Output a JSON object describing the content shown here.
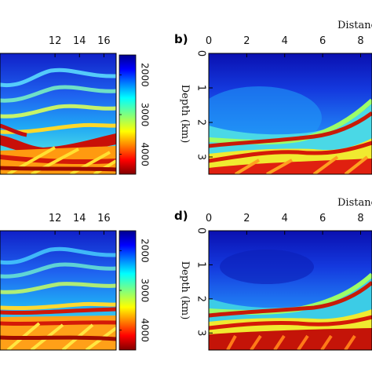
{
  "chart_data": [
    {
      "type": "heatmap",
      "panel": "a",
      "visible_label": "",
      "xticks": [
        12,
        14,
        16
      ],
      "xlim": [
        7.5,
        17
      ],
      "colorbar": {
        "ticks": [
          2000,
          3000,
          4000
        ],
        "range": [
          1500,
          4500
        ],
        "colormap": "jet",
        "reversed": true
      }
    },
    {
      "type": "heatmap",
      "panel": "b",
      "visible_label": "b)",
      "xlabel": "Distanc",
      "ylabel": "Depth (km)",
      "xticks": [
        0,
        2,
        4,
        6,
        8
      ],
      "yticks": [
        0,
        1,
        2,
        3
      ],
      "xlim": [
        0,
        8.6
      ],
      "ylim": [
        3.5,
        0
      ]
    },
    {
      "type": "heatmap",
      "panel": "c",
      "visible_label": "",
      "xticks": [
        12,
        14,
        16
      ],
      "xlim": [
        7.5,
        17
      ],
      "colorbar": {
        "ticks": [
          2000,
          3000,
          4000
        ],
        "range": [
          1500,
          4500
        ],
        "colormap": "jet",
        "reversed": true
      }
    },
    {
      "type": "heatmap",
      "panel": "d",
      "visible_label": "d)",
      "xlabel": "Distanc",
      "ylabel": "Depth (km)",
      "xticks": [
        0,
        2,
        4,
        6,
        8
      ],
      "yticks": [
        0,
        1,
        2,
        3
      ],
      "xlim": [
        0,
        8.6
      ],
      "ylim": [
        3.5,
        0
      ]
    }
  ]
}
